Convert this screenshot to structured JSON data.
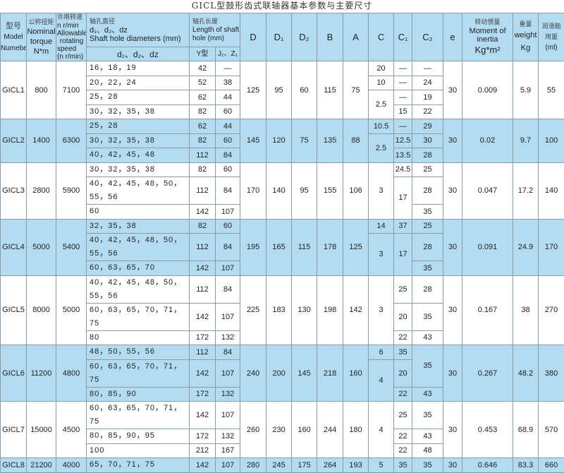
{
  "title": "GICL型鼓形齿式联轴器基本参数与主要尺寸",
  "colors": {
    "header_bg": "#b3dcf3",
    "stripe_bg": "#b3dcf3",
    "border": "#8a9aa6"
  },
  "header": {
    "model": {
      "cn": "型号",
      "en1": "Model",
      "en2": "Numeber"
    },
    "torque": {
      "cn": "公称扭矩",
      "en1": "Nominal",
      "en2": "torque",
      "unit": "N*m"
    },
    "speed": {
      "cn": "许用转速",
      "l1": "n r/min",
      "l2": "Allowable",
      "l3": "rotating",
      "l4": "speed",
      "l5": "(n r/min)"
    },
    "bore": {
      "cn": "轴孔直径",
      "sym": "d₁、d₂、dz",
      "en": "Shaft hole diameters (mm)",
      "sub": "d₁、d₂、dz"
    },
    "length": {
      "cn": "轴孔长度",
      "en1": "Length of shaft",
      "en2": "hole (mm)",
      "y": "Y型",
      "j": "J₁、Z₁"
    },
    "D": "D",
    "D1": "D₁",
    "D2": "D₂",
    "B": "B",
    "A": "A",
    "C": "C",
    "C1": "C₁",
    "C2": "C₂",
    "e": "e",
    "moment": {
      "cn": "转动惯量",
      "en1": "Moment of",
      "en2": "inertia",
      "unit": "Kg*m²"
    },
    "weight": {
      "cn": "重量",
      "en": "weight",
      "unit": "Kg"
    },
    "grease": {
      "cn1": "润滑脂",
      "cn2": "用量",
      "unit": "(ml)"
    }
  },
  "groups": [
    {
      "model": "GICL1",
      "torque": "800",
      "speed": "7100",
      "D": "125",
      "D1": "95",
      "D2": "60",
      "B": "115",
      "A": "75",
      "e": "30",
      "moment": "0.009",
      "weight": "5.9",
      "grease": "55",
      "bores": [
        {
          "d": "16，18，19",
          "Y": "42",
          "J": "—",
          "span": 1
        },
        {
          "d": "20，22，24",
          "Y": "52",
          "J": "38",
          "span": 1
        },
        {
          "d": "25，28",
          "Y": "62",
          "J": "44",
          "span": 1
        },
        {
          "d": "30，32，35，38",
          "Y": "82",
          "J": "60",
          "span": 1
        }
      ],
      "C": [
        {
          "v": "20",
          "span": 1
        },
        {
          "v": "10",
          "span": 1
        },
        {
          "v": "2.5",
          "span": 2
        }
      ],
      "C1": [
        {
          "v": "—",
          "span": 1
        },
        {
          "v": "—",
          "span": 1
        },
        {
          "v": "—",
          "span": 1
        },
        {
          "v": "15",
          "span": 1
        }
      ],
      "C2": [
        {
          "v": "—",
          "span": 1
        },
        {
          "v": "24",
          "span": 1
        },
        {
          "v": "19",
          "span": 1
        },
        {
          "v": "22",
          "span": 1
        }
      ]
    },
    {
      "model": "GICL2",
      "torque": "1400",
      "speed": "6300",
      "D": "145",
      "D1": "120",
      "D2": "75",
      "B": "135",
      "A": "88",
      "e": "30",
      "moment": "0.02",
      "weight": "9.7",
      "grease": "100",
      "bores": [
        {
          "d": "25，28",
          "Y": "62",
          "J": "44",
          "span": 1
        },
        {
          "d": "30，32，35，38",
          "Y": "82",
          "J": "60",
          "span": 1
        },
        {
          "d": "40，42，45，48",
          "Y": "112",
          "J": "84",
          "span": 1
        }
      ],
      "C": [
        {
          "v": "10.5",
          "span": 1
        },
        {
          "v": "2.5",
          "span": 2
        }
      ],
      "C1": [
        {
          "v": "—",
          "span": 1
        },
        {
          "v": "12.5",
          "span": 1
        },
        {
          "v": "13.5",
          "span": 1
        }
      ],
      "C2": [
        {
          "v": "29",
          "span": 1
        },
        {
          "v": "30",
          "span": 1
        },
        {
          "v": "28",
          "span": 1
        }
      ]
    },
    {
      "model": "GICL3",
      "torque": "2800",
      "speed": "5900",
      "D": "170",
      "D1": "140",
      "D2": "95",
      "B": "155",
      "A": "106",
      "e": "30",
      "moment": "0.047",
      "weight": "17.2",
      "grease": "140",
      "bores": [
        {
          "d": "30，32，35，38",
          "Y": "82",
          "J": "60",
          "span": 1
        },
        {
          "d": "40，42，45，48，50，55，56",
          "Y": "112",
          "J": "84",
          "span": 2
        },
        {
          "d": "60",
          "Y": "142",
          "J": "107",
          "span": 1
        }
      ],
      "C": [
        {
          "v": "3",
          "span": 4
        }
      ],
      "C1": [
        {
          "v": "24.5",
          "span": 1
        },
        {
          "v": "17",
          "span": 3
        }
      ],
      "C2": [
        {
          "v": "25",
          "span": 1
        },
        {
          "v": "28",
          "span": 2
        },
        {
          "v": "35",
          "span": 1
        }
      ]
    },
    {
      "model": "GICL4",
      "torque": "5000",
      "speed": "5400",
      "D": "195",
      "D1": "165",
      "D2": "115",
      "B": "178",
      "A": "125",
      "e": "30",
      "moment": "0.091",
      "weight": "24.9",
      "grease": "170",
      "bores": [
        {
          "d": "32，35，38",
          "Y": "82",
          "J": "60",
          "span": 1
        },
        {
          "d": "40，42，45，48，50，55，56",
          "Y": "112",
          "J": "84",
          "span": 2
        },
        {
          "d": "60，63，65，70",
          "Y": "142",
          "J": "107",
          "span": 1
        }
      ],
      "C": [
        {
          "v": "14",
          "span": 1
        },
        {
          "v": "3",
          "span": 3
        }
      ],
      "C1": [
        {
          "v": "37",
          "span": 1
        },
        {
          "v": "17",
          "span": 3
        }
      ],
      "C2": [
        {
          "v": "25",
          "span": 1
        },
        {
          "v": "28",
          "span": 2
        },
        {
          "v": "35",
          "span": 1
        }
      ]
    },
    {
      "model": "GICL5",
      "torque": "8000",
      "speed": "5000",
      "D": "225",
      "D1": "183",
      "D2": "130",
      "B": "198",
      "A": "142",
      "e": "30",
      "moment": "0.167",
      "weight": "38",
      "grease": "270",
      "bores": [
        {
          "d": "40，42，45，48，50，55，56",
          "Y": "112",
          "J": "84",
          "span": 2
        },
        {
          "d": "60，63，65，70，71，75",
          "Y": "142",
          "J": "107",
          "span": 1
        },
        {
          "d": "80",
          "Y": "172",
          "J": "132",
          "span": 1
        }
      ],
      "C": [
        {
          "v": "3",
          "span": 4
        }
      ],
      "C1": [
        {
          "v": "25",
          "span": 2
        },
        {
          "v": "20",
          "span": 1
        },
        {
          "v": "22",
          "span": 1
        }
      ],
      "C2": [
        {
          "v": "28",
          "span": 2
        },
        {
          "v": "35",
          "span": 1
        },
        {
          "v": "43",
          "span": 1
        }
      ]
    },
    {
      "model": "GICL6",
      "torque": "11200",
      "speed": "4800",
      "D": "240",
      "D1": "200",
      "D2": "145",
      "B": "218",
      "A": "160",
      "e": "30",
      "moment": "0.267",
      "weight": "48.2",
      "grease": "380",
      "bores": [
        {
          "d": "48，50，55，56",
          "Y": "112",
          "J": "84",
          "span": 1
        },
        {
          "d": "60，63，65，70，71，75",
          "Y": "142",
          "J": "107",
          "span": 1
        },
        {
          "d": "80，85，90",
          "Y": "172",
          "J": "132",
          "span": 1
        }
      ],
      "C": [
        {
          "v": "6",
          "span": 1
        },
        {
          "v": "4",
          "span": 2
        }
      ],
      "C1": [
        {
          "v": "35",
          "span": 1
        },
        {
          "v": "20",
          "span": 1
        },
        {
          "v": "22",
          "span": 1
        }
      ],
      "C2": [
        {
          "v": "35",
          "span": 2
        },
        {
          "v": "43",
          "span": 1
        }
      ]
    },
    {
      "model": "GICL7",
      "torque": "15000",
      "speed": "4500",
      "D": "260",
      "D1": "230",
      "D2": "160",
      "B": "244",
      "A": "180",
      "e": "30",
      "moment": "0.453",
      "weight": "68.9",
      "grease": "570",
      "bores": [
        {
          "d": "60，63，65，70，71，75",
          "Y": "142",
          "J": "107",
          "span": 1
        },
        {
          "d": "80，85，90，95",
          "Y": "172",
          "J": "132",
          "span": 1
        },
        {
          "d": "100",
          "Y": "212",
          "J": "167",
          "span": 1
        }
      ],
      "C": [
        {
          "v": "4",
          "span": 3
        }
      ],
      "C1": [
        {
          "v": "25",
          "span": 1
        },
        {
          "v": "22",
          "span": 1
        },
        {
          "v": "22",
          "span": 1
        }
      ],
      "C2": [
        {
          "v": "35",
          "span": 1
        },
        {
          "v": "43",
          "span": 1
        },
        {
          "v": "48",
          "span": 1
        }
      ]
    },
    {
      "model": "GICL8",
      "torque": "21200",
      "speed": "4000",
      "D": "280",
      "D1": "245",
      "D2": "175",
      "B": "264",
      "A": "193",
      "e": "30",
      "moment": "0.646",
      "weight": "83.3",
      "grease": "660",
      "bores": [
        {
          "d": "65，70，71，75",
          "Y": "142",
          "J": "107",
          "span": 1
        }
      ],
      "C": [
        {
          "v": "5",
          "span": 1
        }
      ],
      "C1": [
        {
          "v": "35",
          "span": 1
        }
      ],
      "C2": [
        {
          "v": "35",
          "span": 1
        }
      ]
    }
  ]
}
